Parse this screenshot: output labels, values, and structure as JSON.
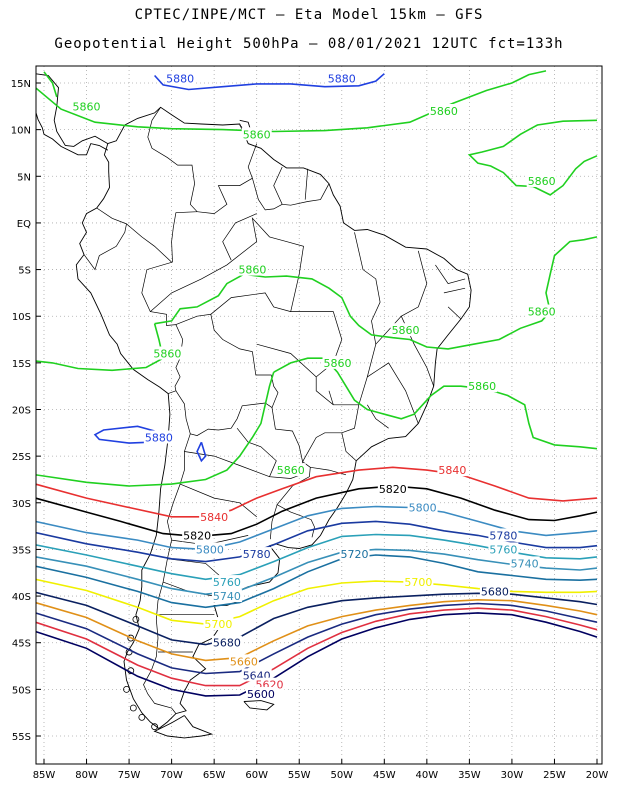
{
  "title_line1": "CPTEC/INPE/MCT – Eta Model 15km – GFS",
  "title_line2": "Geopotential Height 500hPa – 08/01/2021 12UTC fct=133h",
  "lat_ticks": [
    "15N",
    "10N",
    "5N",
    "EQ",
    "5S",
    "10S",
    "15S",
    "20S",
    "25S",
    "30S",
    "35S",
    "40S",
    "45S",
    "50S",
    "55S"
  ],
  "lon_ticks": [
    "85W",
    "80W",
    "75W",
    "70W",
    "65W",
    "60W",
    "55W",
    "50W",
    "45W",
    "40W",
    "35W",
    "30W",
    "25W",
    "20W"
  ],
  "contour_colors": {
    "5880": "#2040e0",
    "5860": "#20d020",
    "5840": "#e83030",
    "5820": "#000000",
    "5800": "#3b8bc2",
    "5780": "#1a3aa0",
    "5760": "#2aa0b8",
    "5740": "#3890b8",
    "5720": "#1a70a0",
    "5700": "#f0f000",
    "5680": "#0a2060",
    "5660": "#e09018",
    "5640": "#1a2a80",
    "5620": "#e03040",
    "5600": "#000060"
  },
  "contour_labels": [
    {
      "value": "5880",
      "lon": -69.0,
      "lat": 15.5,
      "color_key": "5880"
    },
    {
      "value": "5880",
      "lon": -50.0,
      "lat": 15.5,
      "color_key": "5880"
    },
    {
      "value": "5880",
      "lon": -71.5,
      "lat": -23.0,
      "color_key": "5880"
    },
    {
      "value": "5860",
      "lon": -80.0,
      "lat": 12.5,
      "color_key": "5860"
    },
    {
      "value": "5860",
      "lon": -60.0,
      "lat": 9.5,
      "color_key": "5860"
    },
    {
      "value": "5860",
      "lon": -38.0,
      "lat": 12.0,
      "color_key": "5860"
    },
    {
      "value": "5860",
      "lon": -26.5,
      "lat": 4.5,
      "color_key": "5860"
    },
    {
      "value": "5860",
      "lon": -60.5,
      "lat": -5.0,
      "color_key": "5860"
    },
    {
      "value": "5860",
      "lon": -26.5,
      "lat": -9.5,
      "color_key": "5860"
    },
    {
      "value": "5860",
      "lon": -42.5,
      "lat": -11.5,
      "color_key": "5860"
    },
    {
      "value": "5860",
      "lon": -70.5,
      "lat": -14.0,
      "color_key": "5860"
    },
    {
      "value": "5860",
      "lon": -50.5,
      "lat": -15.0,
      "color_key": "5860"
    },
    {
      "value": "5860",
      "lon": -33.5,
      "lat": -17.5,
      "color_key": "5860"
    },
    {
      "value": "5860",
      "lon": -56.0,
      "lat": -26.5,
      "color_key": "5860"
    },
    {
      "value": "5840",
      "lon": -37.0,
      "lat": -26.5,
      "color_key": "5840"
    },
    {
      "value": "5840",
      "lon": -65.0,
      "lat": -31.5,
      "color_key": "5840"
    },
    {
      "value": "5820",
      "lon": -44.0,
      "lat": -28.5,
      "color_key": "5820"
    },
    {
      "value": "5820",
      "lon": -67.0,
      "lat": -33.5,
      "color_key": "5820"
    },
    {
      "value": "5800",
      "lon": -40.5,
      "lat": -30.5,
      "color_key": "5800"
    },
    {
      "value": "5800",
      "lon": -65.5,
      "lat": -35.0,
      "color_key": "5800"
    },
    {
      "value": "5780",
      "lon": -31.0,
      "lat": -33.5,
      "color_key": "5780"
    },
    {
      "value": "5780",
      "lon": -60.0,
      "lat": -35.5,
      "color_key": "5780"
    },
    {
      "value": "5760",
      "lon": -31.0,
      "lat": -35.0,
      "color_key": "5760"
    },
    {
      "value": "5760",
      "lon": -63.5,
      "lat": -38.5,
      "color_key": "5760"
    },
    {
      "value": "5740",
      "lon": -28.5,
      "lat": -36.5,
      "color_key": "5740"
    },
    {
      "value": "5740",
      "lon": -63.5,
      "lat": -40.0,
      "color_key": "5740"
    },
    {
      "value": "5720",
      "lon": -48.5,
      "lat": -35.5,
      "color_key": "5720"
    },
    {
      "value": "5700",
      "lon": -41.0,
      "lat": -38.5,
      "color_key": "5700"
    },
    {
      "value": "5700",
      "lon": -64.5,
      "lat": -43.0,
      "color_key": "5700"
    },
    {
      "value": "5680",
      "lon": -32.0,
      "lat": -39.5,
      "color_key": "5680"
    },
    {
      "value": "5680",
      "lon": -63.5,
      "lat": -45.0,
      "color_key": "5680"
    },
    {
      "value": "5660",
      "lon": -61.5,
      "lat": -47.0,
      "color_key": "5660"
    },
    {
      "value": "5640",
      "lon": -60.0,
      "lat": -48.5,
      "color_key": "5640"
    },
    {
      "value": "5620",
      "lon": -58.5,
      "lat": -49.5,
      "color_key": "5620"
    },
    {
      "value": "5600",
      "lon": -59.5,
      "lat": -50.5,
      "color_key": "5600"
    }
  ]
}
